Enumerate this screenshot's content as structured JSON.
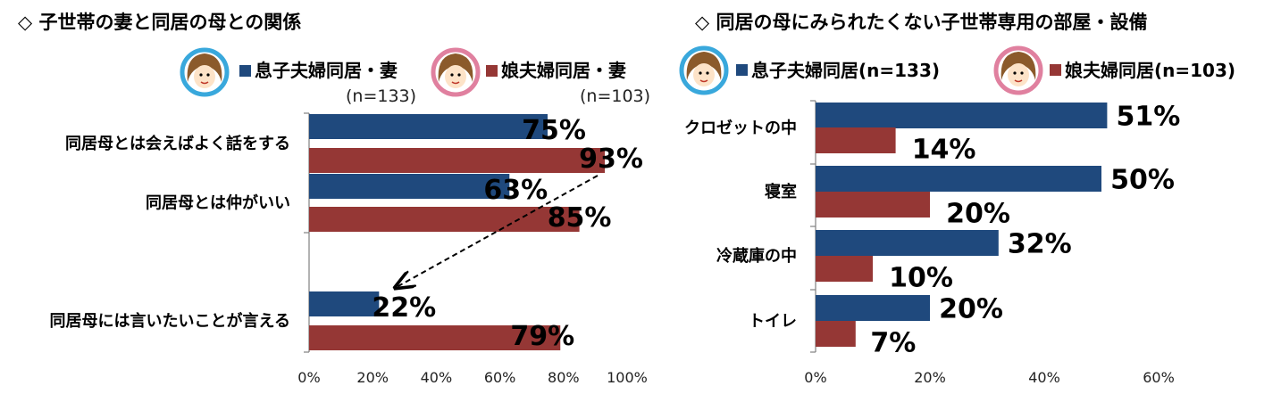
{
  "colors": {
    "blue": "#1f497d",
    "red": "#953735",
    "axis": "#808080",
    "ring_blue": "#39a8dc",
    "ring_pink": "#e0809f"
  },
  "chart_data": [
    {
      "type": "bar",
      "orientation": "horizontal",
      "title": "◇ 子世帯の妻と同居の母との関係",
      "categories": [
        "同居母とは会えばよく話をする",
        "同居母とは仲がいい",
        "同居母には言いたいことが言える"
      ],
      "series": [
        {
          "name": "息子夫婦同居・妻",
          "n_label": "(n=133)",
          "values": [
            75,
            63,
            22
          ],
          "labels": [
            "75%",
            "63%",
            "22%"
          ]
        },
        {
          "name": "娘夫婦同居・妻",
          "n_label": "(n=103)",
          "values": [
            93,
            85,
            79
          ],
          "labels": [
            "93%",
            "85%",
            "79%"
          ]
        }
      ],
      "xlim": [
        0,
        100
      ],
      "x_ticks": [
        "0%",
        "20%",
        "40%",
        "60%",
        "80%",
        "100%"
      ],
      "legend": "top-right",
      "annotation": "dashed arrow from 93% (娘夫婦同居) to 22% (息子夫婦同居)"
    },
    {
      "type": "bar",
      "orientation": "horizontal",
      "title": "◇ 同居の母にみられたくない子世帯専用の部屋・設備",
      "categories": [
        "クロゼットの中",
        "寝室",
        "冷蔵庫の中",
        "トイレ"
      ],
      "series": [
        {
          "name": "息子夫婦同居(n=133)",
          "values": [
            51,
            50,
            32,
            20
          ],
          "labels": [
            "51%",
            "50%",
            "32%",
            "20%"
          ]
        },
        {
          "name": "娘夫婦同居(n=103)",
          "values": [
            14,
            20,
            10,
            7
          ],
          "labels": [
            "14%",
            "20%",
            "10%",
            "7%"
          ]
        }
      ],
      "xlim": [
        0,
        60
      ],
      "x_ticks": [
        "0%",
        "20%",
        "40%",
        "60%"
      ],
      "legend": "top"
    }
  ]
}
